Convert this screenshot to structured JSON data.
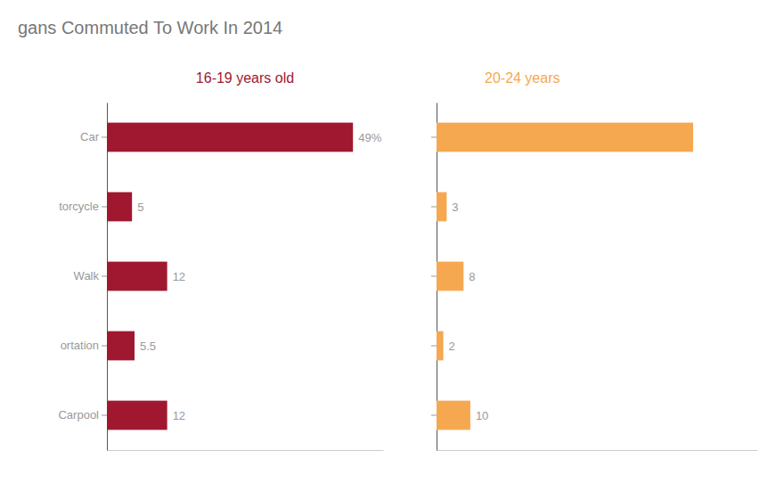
{
  "chart_data": [
    {
      "type": "bar",
      "orientation": "horizontal",
      "title": "gans Commuted To Work In 2014",
      "categories": [
        "Car",
        "torcycle",
        "Walk",
        "ortation",
        "Carpool"
      ],
      "series": [
        {
          "name": "16-19 years old",
          "color": "#A01830",
          "values": [
            49,
            5,
            12,
            5.5,
            12
          ],
          "value_labels": [
            "49%",
            "5",
            "12",
            "5.5",
            "12"
          ]
        }
      ],
      "xlim": [
        0,
        55
      ],
      "grid": false,
      "data_labels": true,
      "tick_labels": "y"
    },
    {
      "type": "bar",
      "orientation": "horizontal",
      "categories": [
        null,
        null,
        null,
        null,
        null
      ],
      "series": [
        {
          "name": "20-24 years",
          "color": "#F5A850",
          "values": [
            76,
            3,
            8,
            2,
            10
          ],
          "value_labels": [
            null,
            "3",
            "8",
            "2",
            "10"
          ]
        }
      ],
      "xlim": [
        0,
        95
      ],
      "grid": false,
      "data_labels": true,
      "tick_labels": false
    }
  ]
}
